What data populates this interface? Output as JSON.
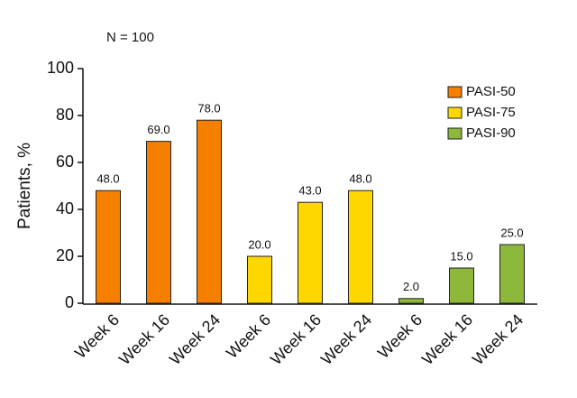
{
  "chart_data": {
    "type": "bar",
    "annotation": "N = 100",
    "y_label": "Patients, %",
    "categories": [
      "Week 6",
      "Week 16",
      "Week 24"
    ],
    "series": [
      {
        "name": "PASI-50",
        "color": "#f77f00",
        "values": [
          48,
          69,
          78
        ],
        "value_labels": [
          "48.0",
          "69.0",
          "78.0"
        ]
      },
      {
        "name": "PASI-75",
        "color": "#ffd700",
        "values": [
          20,
          43,
          48
        ],
        "value_labels": [
          "20.0",
          "43.0",
          "48.0"
        ]
      },
      {
        "name": "PASI-90",
        "color": "#8db83c",
        "values": [
          2,
          15,
          25
        ],
        "value_labels": [
          "2.0",
          "15.0",
          "25.0"
        ]
      }
    ],
    "ylim": [
      0,
      100
    ],
    "yticks": [
      0,
      20,
      40,
      60,
      80,
      100
    ],
    "grid": false,
    "legend": "top-right"
  }
}
